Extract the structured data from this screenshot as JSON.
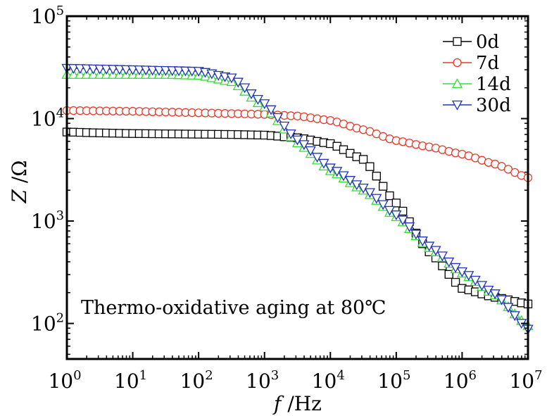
{
  "chart_data": {
    "type": "scatter",
    "annotation": "Thermo-oxidative aging at 80℃",
    "xlabel": {
      "italic": "f",
      "rest": " /Hz"
    },
    "ylabel": {
      "italic": "Z",
      "rest": " /Ω"
    },
    "xscale": "log",
    "yscale": "log",
    "xlim": [
      1,
      10000000
    ],
    "ylim": [
      45,
      100000
    ],
    "x_ticks": [
      {
        "base": "10",
        "exp": "0"
      },
      {
        "base": "10",
        "exp": "1"
      },
      {
        "base": "10",
        "exp": "2"
      },
      {
        "base": "10",
        "exp": "3"
      },
      {
        "base": "10",
        "exp": "4"
      },
      {
        "base": "10",
        "exp": "5"
      },
      {
        "base": "10",
        "exp": "6"
      },
      {
        "base": "10",
        "exp": "7"
      }
    ],
    "y_ticks": [
      {
        "base": "10",
        "exp": "2"
      },
      {
        "base": "10",
        "exp": "3"
      },
      {
        "base": "10",
        "exp": "4"
      },
      {
        "base": "10",
        "exp": "5"
      }
    ],
    "grid": false,
    "legend_position": "top-right",
    "series": [
      {
        "name": "0d",
        "marker": "square",
        "color": "#000000",
        "points": [
          [
            0,
            7400
          ],
          [
            0.5,
            7250
          ],
          [
            1,
            7150
          ],
          [
            1.5,
            7100
          ],
          [
            2,
            7050
          ],
          [
            2.5,
            7000
          ],
          [
            3,
            6900
          ],
          [
            3.5,
            6500
          ],
          [
            4,
            5700
          ],
          [
            4.5,
            4000
          ],
          [
            5,
            1500
          ],
          [
            5.5,
            500
          ],
          [
            6,
            220
          ],
          [
            6.5,
            180
          ],
          [
            7,
            155
          ]
        ]
      },
      {
        "name": "7d",
        "marker": "circle",
        "color": "#e8392b",
        "points": [
          [
            0,
            12000
          ],
          [
            0.5,
            11900
          ],
          [
            1,
            11800
          ],
          [
            1.5,
            11600
          ],
          [
            2,
            11400
          ],
          [
            2.5,
            11200
          ],
          [
            3,
            11000
          ],
          [
            3.5,
            10600
          ],
          [
            4,
            9600
          ],
          [
            4.5,
            7800
          ],
          [
            5,
            6100
          ],
          [
            5.5,
            5300
          ],
          [
            6,
            4500
          ],
          [
            6.5,
            3600
          ],
          [
            7,
            2650
          ]
        ]
      },
      {
        "name": "14d",
        "marker": "triangle-up",
        "color": "#33dd33",
        "points": [
          [
            0,
            27000
          ],
          [
            0.5,
            27000
          ],
          [
            1,
            27000
          ],
          [
            1.5,
            27000
          ],
          [
            2,
            26500
          ],
          [
            2.5,
            23000
          ],
          [
            3,
            13000
          ],
          [
            3.5,
            5800
          ],
          [
            4,
            3100
          ],
          [
            4.5,
            2000
          ],
          [
            5,
            1100
          ],
          [
            5.5,
            550
          ],
          [
            6,
            310
          ],
          [
            6.5,
            190
          ],
          [
            7,
            95
          ]
        ]
      },
      {
        "name": "30d",
        "marker": "triangle-down",
        "color": "#2233bb",
        "edge_color": "#118888",
        "points": [
          [
            0,
            31000
          ],
          [
            0.5,
            30500
          ],
          [
            1,
            30000
          ],
          [
            1.5,
            29500
          ],
          [
            2,
            29000
          ],
          [
            2.5,
            25000
          ],
          [
            3,
            14000
          ],
          [
            3.5,
            6200
          ],
          [
            4,
            3300
          ],
          [
            4.5,
            2100
          ],
          [
            5,
            1150
          ],
          [
            5.5,
            570
          ],
          [
            6,
            320
          ],
          [
            6.5,
            195
          ],
          [
            7,
            88
          ]
        ]
      }
    ]
  }
}
